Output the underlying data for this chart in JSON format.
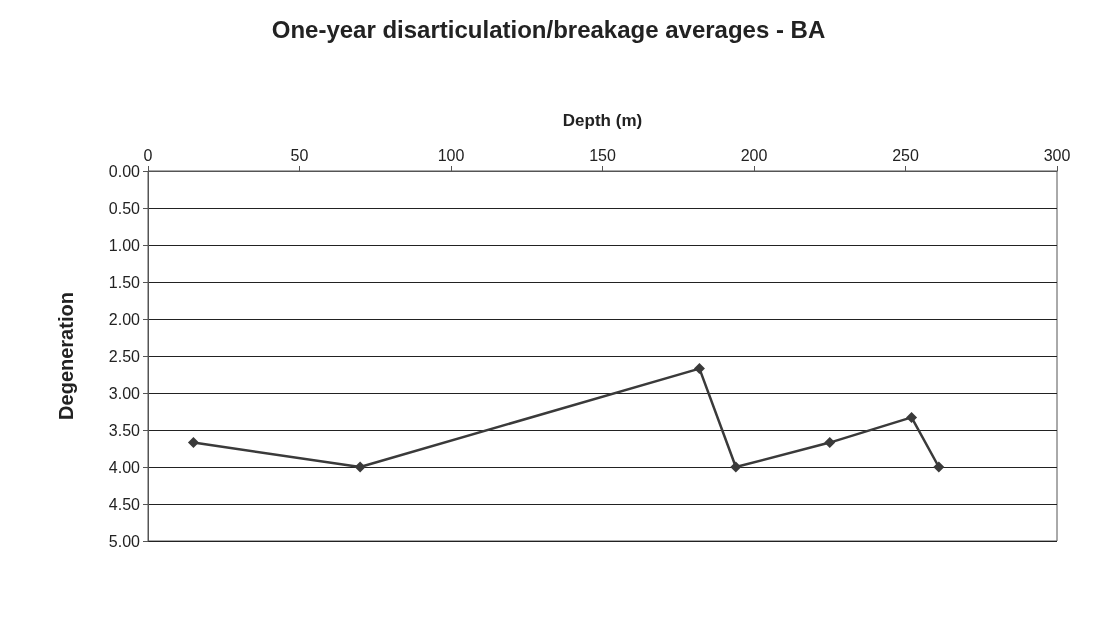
{
  "chart_data": {
    "type": "line",
    "title": "One-year disarticulation/breakage averages - BA",
    "xlabel": "Depth (m)",
    "ylabel": "Degeneration",
    "x": [
      15,
      70,
      182,
      194,
      225,
      252,
      261
    ],
    "series": [
      {
        "color": "#3a3a3a",
        "values": [
          3.67,
          4,
          2.67,
          4,
          3.67,
          3.33,
          4
        ]
      }
    ],
    "xlim": [
      0,
      300
    ],
    "xticks": [
      0,
      50,
      100,
      150,
      200,
      250,
      300
    ],
    "ylim": [
      5,
      0
    ],
    "yticks": [
      {
        "value": 0,
        "label": "0.00"
      },
      {
        "value": 0.5,
        "label": "0.50"
      },
      {
        "value": 1,
        "label": "1.00"
      },
      {
        "value": 1.5,
        "label": "1.50"
      },
      {
        "value": 2,
        "label": "2.00"
      },
      {
        "value": 2.5,
        "label": "2.50"
      },
      {
        "value": 3,
        "label": "3.00"
      },
      {
        "value": 3.5,
        "label": "3.50"
      },
      {
        "value": 4,
        "label": "4.00"
      },
      {
        "value": 4.5,
        "label": "4.50"
      },
      {
        "value": 5,
        "label": "5.00"
      }
    ],
    "grid": "y",
    "marker": "diamond",
    "line_style": "solid"
  }
}
